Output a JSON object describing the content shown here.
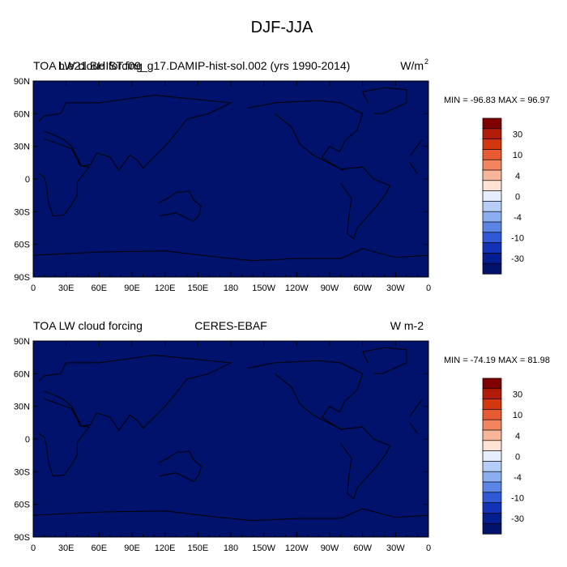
{
  "figure_title": "DJF-JJA",
  "colorbar": {
    "levels": [
      "30",
      "10",
      "4",
      "0",
      "-4",
      "-10",
      "-30"
    ],
    "colors": [
      "#7f0000",
      "#b01c08",
      "#d4370f",
      "#e85a32",
      "#f2845e",
      "#f7b69a",
      "#fde2d5",
      "#e5eefc",
      "#b6cdf7",
      "#8aaef0",
      "#5a84e6",
      "#2f59d6",
      "#1232b8",
      "#041d8f",
      "#00126b"
    ]
  },
  "land_outline": {
    "africa": [
      [
        -17,
        15
      ],
      [
        -10,
        5
      ],
      [
        5,
        5
      ],
      [
        10,
        2
      ],
      [
        12,
        -6
      ],
      [
        14,
        -22
      ],
      [
        18,
        -34
      ],
      [
        28,
        -33
      ],
      [
        34,
        -25
      ],
      [
        40,
        -15
      ],
      [
        40,
        -3
      ],
      [
        51,
        11
      ],
      [
        43,
        12
      ],
      [
        35,
        28
      ],
      [
        10,
        37
      ],
      [
        -6,
        36
      ],
      [
        -17,
        21
      ]
    ],
    "south_america": [
      [
        -80,
        9
      ],
      [
        -60,
        11
      ],
      [
        -50,
        0
      ],
      [
        -35,
        -6
      ],
      [
        -39,
        -14
      ],
      [
        -48,
        -26
      ],
      [
        -58,
        -37
      ],
      [
        -65,
        -45
      ],
      [
        -68,
        -55
      ],
      [
        -74,
        -50
      ],
      [
        -72,
        -30
      ],
      [
        -70,
        -18
      ],
      [
        -80,
        -4
      ]
    ],
    "north_america": [
      [
        -165,
        65
      ],
      [
        -140,
        70
      ],
      [
        -100,
        72
      ],
      [
        -80,
        70
      ],
      [
        -60,
        60
      ],
      [
        -65,
        45
      ],
      [
        -76,
        35
      ],
      [
        -81,
        25
      ],
      [
        -90,
        30
      ],
      [
        -97,
        20
      ],
      [
        -90,
        15
      ],
      [
        -78,
        8
      ],
      [
        -105,
        22
      ],
      [
        -117,
        32
      ],
      [
        -125,
        48
      ],
      [
        -140,
        60
      ]
    ],
    "greenland": [
      [
        -50,
        60
      ],
      [
        -42,
        60
      ],
      [
        -20,
        70
      ],
      [
        -20,
        82
      ],
      [
        -40,
        84
      ],
      [
        -60,
        80
      ],
      [
        -55,
        70
      ]
    ],
    "eurasia": [
      [
        -10,
        36
      ],
      [
        0,
        45
      ],
      [
        -5,
        48
      ],
      [
        5,
        53
      ],
      [
        10,
        58
      ],
      [
        25,
        60
      ],
      [
        30,
        70
      ],
      [
        60,
        70
      ],
      [
        110,
        77
      ],
      [
        180,
        70
      ],
      [
        160,
        60
      ],
      [
        140,
        55
      ],
      [
        130,
        42
      ],
      [
        120,
        30
      ],
      [
        110,
        20
      ],
      [
        100,
        10
      ],
      [
        95,
        17
      ],
      [
        88,
        22
      ],
      [
        78,
        8
      ],
      [
        70,
        20
      ],
      [
        58,
        24
      ],
      [
        52,
        13
      ],
      [
        44,
        12
      ],
      [
        35,
        30
      ],
      [
        28,
        36
      ],
      [
        20,
        40
      ],
      [
        10,
        44
      ]
    ],
    "australia": [
      [
        114,
        -22
      ],
      [
        122,
        -18
      ],
      [
        131,
        -12
      ],
      [
        137,
        -12
      ],
      [
        142,
        -11
      ],
      [
        146,
        -19
      ],
      [
        153,
        -25
      ],
      [
        151,
        -33
      ],
      [
        146,
        -39
      ],
      [
        138,
        -35
      ],
      [
        130,
        -31
      ],
      [
        115,
        -34
      ]
    ],
    "antarctica_coast": [
      [
        0,
        -70
      ],
      [
        60,
        -67
      ],
      [
        120,
        -66
      ],
      [
        170,
        -72
      ],
      [
        200,
        -75
      ],
      [
        240,
        -73
      ],
      [
        280,
        -73
      ],
      [
        300,
        -64
      ],
      [
        330,
        -72
      ],
      [
        360,
        -70
      ]
    ]
  },
  "chart_data": [
    {
      "type": "heatmap",
      "title_left": "TOA LW cloud forcing",
      "title_overlap": "b.e21.BHIST.f09_g17.DAMIP-hist-sol.002 (yrs 1990-2014)",
      "title_center": "",
      "title_right": "W/m",
      "title_right_superscript": "2",
      "stats": "MIN = -96.83 MAX =  96.97",
      "min": -96.83,
      "max": 96.97,
      "x_tick_labels": [
        "0",
        "30E",
        "60E",
        "90E",
        "120E",
        "150E",
        "180",
        "150W",
        "120W",
        "90W",
        "60W",
        "30W",
        "0"
      ],
      "y_tick_labels": [
        "90N",
        "60N",
        "30N",
        "0",
        "30S",
        "60S",
        "90S"
      ],
      "xlim": [
        0,
        360
      ],
      "ylim": [
        -90,
        90
      ],
      "noise": 0.03
    },
    {
      "type": "heatmap",
      "title_left": "TOA LW cloud forcing",
      "title_overlap": "",
      "title_center": "CERES-EBAF",
      "title_right": "W m-2",
      "title_right_superscript": "",
      "stats": "MIN = -74.19 MAX =  81.98",
      "min": -74.19,
      "max": 81.98,
      "x_tick_labels": [
        "0",
        "30E",
        "60E",
        "90E",
        "120E",
        "150E",
        "180",
        "150W",
        "120W",
        "90W",
        "60W",
        "30W",
        "0"
      ],
      "y_tick_labels": [
        "90N",
        "60N",
        "30N",
        "0",
        "30S",
        "60S",
        "90S"
      ],
      "xlim": [
        0,
        360
      ],
      "ylim": [
        -90,
        90
      ],
      "noise": 0.22
    }
  ]
}
